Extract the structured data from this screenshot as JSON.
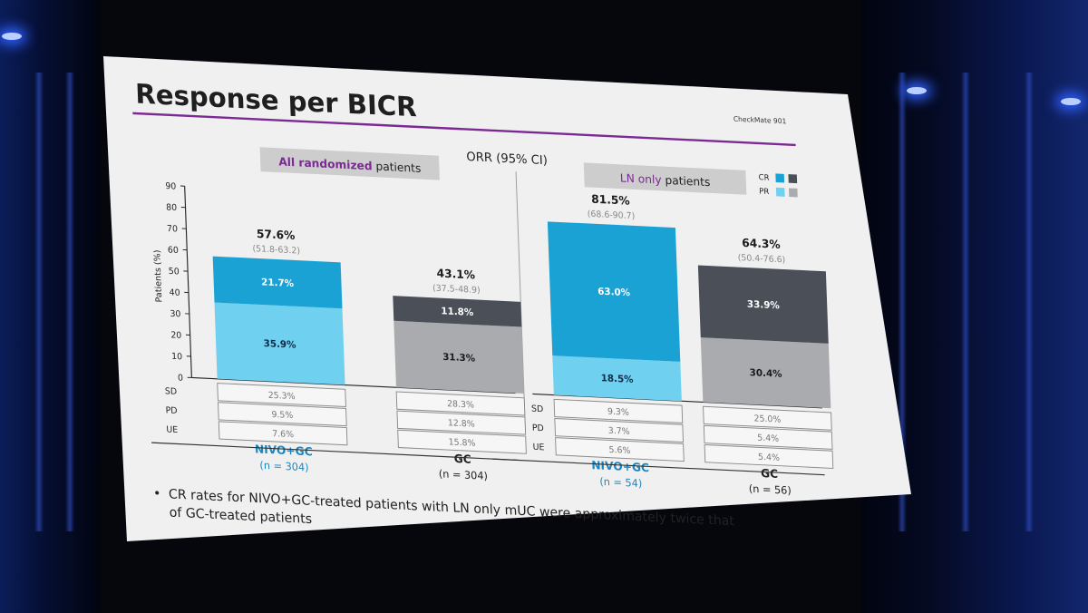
{
  "slide": {
    "title": "Response per BICR",
    "tag": "CheckMate 901",
    "chart_title": "ORR (95% CI)",
    "panel1_label_highlight": "All randomized",
    "panel1_label_rest": " patients",
    "panel2_label_highlight": "LN only",
    "panel2_label_rest": " patients",
    "legend_cr": "CR",
    "legend_pr": "PR",
    "bullet_line1": "CR rates for NIVO+GC-treated patients with LN only mUC were approximately twice that",
    "bullet_line2": "of GC-treated patients",
    "bullet_mark": "•",
    "colors": {
      "nivo_cr": "#1ba2d4",
      "nivo_pr": "#6fd0ef",
      "gc_cr": "#4a4f58",
      "gc_pr": "#a9abaf",
      "purple": "#7a2a92",
      "nivo_text": "#1b87c2"
    }
  },
  "chart_data": {
    "type": "bar",
    "stacked": true,
    "ylabel": "Patients (%)",
    "ylim": [
      0,
      90
    ],
    "yticks": [
      "0",
      "10",
      "20",
      "30",
      "40",
      "50",
      "60",
      "70",
      "80",
      "90"
    ],
    "series": [
      {
        "name": "PR",
        "values": [
          35.9,
          31.3,
          18.5,
          30.4
        ]
      },
      {
        "name": "CR",
        "values": [
          21.7,
          11.8,
          63.0,
          33.9
        ]
      }
    ],
    "bars": [
      {
        "group": "NIVO+GC",
        "n_label": "(n = 304)",
        "arm": "nivo",
        "orr": "57.6%",
        "ci": "(51.8-63.2)",
        "cr": 21.7,
        "pr": 35.9,
        "cr_label": "21.7%",
        "pr_label": "35.9%",
        "sd": "25.3%",
        "pd": "9.5%",
        "ue": "7.6%"
      },
      {
        "group": "GC",
        "n_label": "(n = 304)",
        "arm": "gc",
        "orr": "43.1%",
        "ci": "(37.5-48.9)",
        "cr": 11.8,
        "pr": 31.3,
        "cr_label": "11.8%",
        "pr_label": "31.3%",
        "sd": "28.3%",
        "pd": "12.8%",
        "ue": "15.8%"
      },
      {
        "group": "NIVO+GC",
        "n_label": "(n = 54)",
        "arm": "nivo",
        "orr": "81.5%",
        "ci": "(68.6-90.7)",
        "cr": 63.0,
        "pr": 18.5,
        "cr_label": "63.0%",
        "pr_label": "18.5%",
        "sd": "9.3%",
        "pd": "3.7%",
        "ue": "5.6%"
      },
      {
        "group": "GC",
        "n_label": "(n = 56)",
        "arm": "gc",
        "orr": "64.3%",
        "ci": "(50.4-76.6)",
        "cr": 33.9,
        "pr": 30.4,
        "cr_label": "33.9%",
        "pr_label": "30.4%",
        "sd": "25.0%",
        "pd": "5.4%",
        "ue": "5.4%"
      }
    ],
    "table_rows": [
      "SD",
      "PD",
      "UE"
    ]
  }
}
